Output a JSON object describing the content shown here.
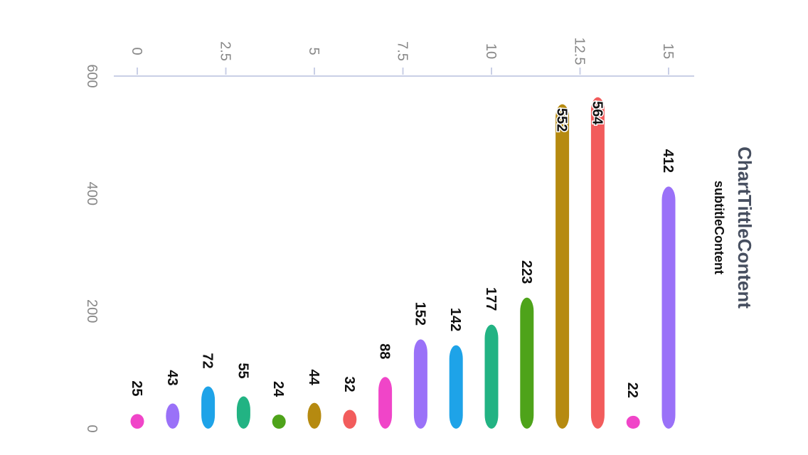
{
  "chart_data": {
    "type": "bar",
    "orientation": "rotated-90-clockwise",
    "title": "ChartTittleContent",
    "subtitle": "subtitleContent",
    "x": [
      0,
      1,
      2,
      3,
      4,
      5,
      6,
      7,
      8,
      9,
      10,
      11,
      12,
      13,
      14,
      15
    ],
    "values": [
      25,
      43,
      72,
      55,
      24,
      44,
      32,
      88,
      152,
      142,
      177,
      223,
      552,
      564,
      22,
      412
    ],
    "colors": [
      "#f045c8",
      "#9a71f8",
      "#1ea3e8",
      "#22b383",
      "#4ea31a",
      "#b68a10",
      "#f25c5c",
      "#f045c8",
      "#9a71f8",
      "#1ea3e8",
      "#22b383",
      "#4ea31a",
      "#b68a10",
      "#f25c5c",
      "#f045c8",
      "#9a71f8"
    ],
    "x_ticks": [
      "0",
      "2.5",
      "5",
      "7.5",
      "10",
      "12.5",
      "15"
    ],
    "y_ticks": [
      "0",
      "200",
      "400",
      "600"
    ],
    "xlim": [
      -0.1,
      15
    ],
    "ylim": [
      0,
      600
    ],
    "show_data_labels": true,
    "grid": false
  }
}
